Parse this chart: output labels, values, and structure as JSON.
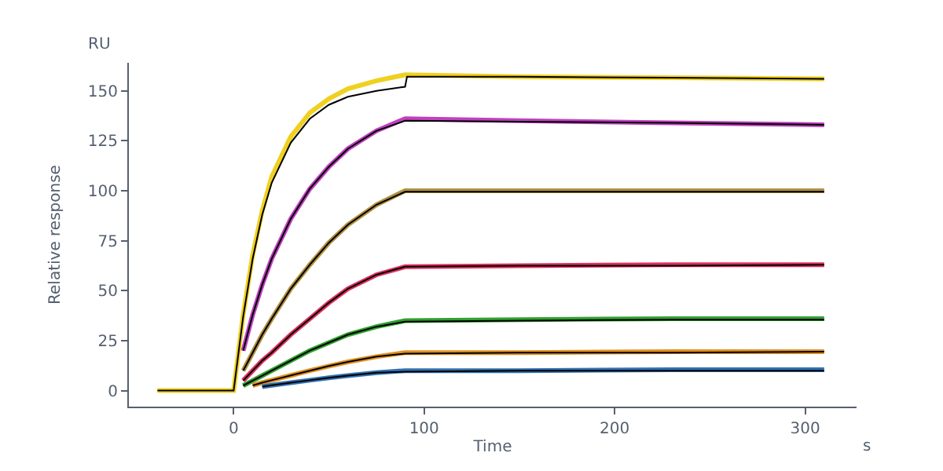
{
  "chart_data": {
    "type": "line",
    "xlabel": "Time",
    "ylabel": "Relative response",
    "annotations": [
      "RU",
      "s"
    ],
    "xlim": [
      -55,
      327
    ],
    "ylim": [
      -8,
      164
    ],
    "xticks": [
      0,
      100,
      200,
      300
    ],
    "yticks": [
      0,
      25,
      50,
      75,
      100,
      125,
      150
    ],
    "marker": "none",
    "line_style": "solid",
    "series": [
      {
        "color": "#f0d020",
        "x": [
          -40,
          0,
          5,
          10,
          15,
          20,
          30,
          40,
          50,
          60,
          75,
          90,
          150,
          230,
          310
        ],
        "values": [
          0,
          0,
          38,
          68,
          90,
          107,
          127,
          139,
          146,
          151,
          155,
          158,
          157,
          156.5,
          156
        ]
      },
      {
        "color": "#c040c0",
        "x": [
          5,
          10,
          15,
          20,
          30,
          40,
          50,
          60,
          75,
          90,
          150,
          230,
          310
        ],
        "values": [
          20,
          38,
          53,
          66,
          86,
          101,
          112,
          121,
          130,
          136,
          135,
          134,
          133
        ]
      },
      {
        "color": "#b09040",
        "x": [
          5,
          10,
          15,
          20,
          30,
          40,
          50,
          60,
          75,
          90,
          150,
          230,
          310
        ],
        "values": [
          10,
          19,
          28,
          36,
          51,
          63,
          74,
          83,
          93,
          100,
          100,
          100,
          100
        ]
      },
      {
        "color": "#e03060",
        "x": [
          5,
          10,
          15,
          20,
          30,
          40,
          50,
          60,
          75,
          90,
          150,
          230,
          310
        ],
        "values": [
          5,
          10,
          15,
          19,
          28,
          36,
          44,
          51,
          58,
          62,
          62.5,
          63,
          63
        ]
      },
      {
        "color": "#30a030",
        "x": [
          5,
          10,
          15,
          20,
          30,
          40,
          50,
          60,
          75,
          90,
          150,
          230,
          310
        ],
        "values": [
          2.5,
          5,
          7.5,
          10,
          15,
          20,
          24,
          28,
          32,
          35,
          35.5,
          36,
          36
        ]
      },
      {
        "color": "#e09020",
        "x": [
          10,
          15,
          20,
          30,
          40,
          50,
          60,
          75,
          90,
          150,
          230,
          310
        ],
        "values": [
          2.6,
          4,
          5.2,
          7.6,
          10,
          12.3,
          14.4,
          17,
          19,
          19,
          19.5,
          19.5
        ]
      },
      {
        "color": "#3070b0",
        "x": [
          15,
          20,
          30,
          40,
          50,
          60,
          75,
          90,
          150,
          230,
          310
        ],
        "values": [
          2,
          2.7,
          4,
          5.2,
          6.4,
          7.5,
          9,
          10,
          10,
          10.5,
          10.5
        ]
      },
      {
        "color": "#000000",
        "x": [
          -40,
          0,
          5,
          10,
          15,
          20,
          30,
          40,
          50,
          60,
          75,
          90,
          91,
          150,
          230,
          310
        ],
        "values": [
          0,
          0,
          37,
          66,
          88,
          104,
          124,
          136,
          143,
          147,
          150,
          152,
          157,
          157,
          156.5,
          156
        ]
      },
      {
        "color": "#000000",
        "x": [
          5,
          10,
          15,
          20,
          30,
          40,
          50,
          60,
          75,
          90,
          150,
          230,
          310
        ],
        "values": [
          20,
          38,
          53,
          66,
          86,
          101,
          112,
          121,
          130,
          135,
          134.5,
          134,
          133
        ]
      },
      {
        "color": "#000000",
        "x": [
          5,
          10,
          15,
          20,
          30,
          40,
          50,
          60,
          75,
          90,
          150,
          230,
          310
        ],
        "values": [
          10,
          19,
          28,
          36,
          51,
          63,
          74,
          83,
          93,
          99.5,
          99.5,
          99.5,
          99.5
        ]
      },
      {
        "color": "#000000",
        "x": [
          5,
          10,
          15,
          20,
          30,
          40,
          50,
          60,
          75,
          90,
          150,
          230,
          310
        ],
        "values": [
          5,
          10,
          15,
          19,
          28,
          36,
          44,
          51,
          58,
          62,
          62.5,
          62.5,
          63
        ]
      },
      {
        "color": "#000000",
        "x": [
          5,
          10,
          15,
          20,
          30,
          40,
          50,
          60,
          75,
          90,
          150,
          230,
          310
        ],
        "values": [
          2.5,
          5,
          7.5,
          10,
          15,
          20,
          24,
          28,
          32,
          34.5,
          35,
          35.5,
          35.5
        ]
      },
      {
        "color": "#000000",
        "x": [
          10,
          15,
          20,
          30,
          40,
          50,
          60,
          75,
          90,
          150,
          230,
          310
        ],
        "values": [
          2.6,
          4,
          5.2,
          7.6,
          10,
          12.3,
          14.4,
          17,
          18.5,
          19,
          19,
          19.5
        ]
      },
      {
        "color": "#000000",
        "x": [
          15,
          20,
          30,
          40,
          50,
          60,
          75,
          90,
          150,
          230,
          310
        ],
        "values": [
          2,
          2.7,
          4,
          5.2,
          6.4,
          7.5,
          9,
          9.5,
          10,
          10,
          10
        ]
      }
    ]
  }
}
